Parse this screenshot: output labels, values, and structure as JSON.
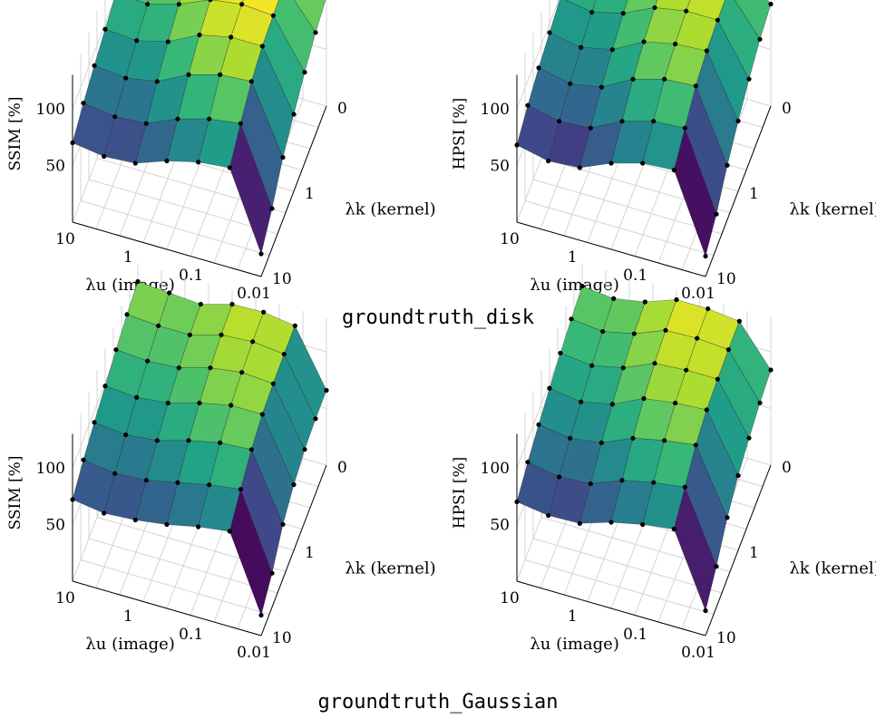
{
  "figure": {
    "captions": [
      "groundtruth_disk",
      "groundtruth_Gaussian"
    ]
  },
  "chart_data": [
    {
      "type": "surface",
      "group": "groundtruth_disk",
      "zlabel": "SSIM [%]",
      "xlabel": "λu (image)",
      "ylabel": "λk (kernel)",
      "x_ticks": [
        "10",
        "1",
        "0.1",
        "0.01"
      ],
      "y_ticks": [
        "0",
        "1",
        "10"
      ],
      "z_ticks": [
        "50",
        "100"
      ],
      "zlim": [
        0,
        130
      ],
      "colormap": "viridis",
      "grid": true,
      "z": [
        [
          70,
          80,
          88,
          95,
          102,
          108,
          112
        ],
        [
          66,
          76,
          85,
          93,
          100,
          106,
          111
        ],
        [
          68,
          78,
          90,
          100,
          108,
          112,
          114
        ],
        [
          78,
          90,
          104,
          114,
          120,
          124,
          126
        ],
        [
          85,
          98,
          112,
          120,
          124,
          126,
          127
        ],
        [
          88,
          102,
          114,
          120,
          122,
          124,
          124
        ],
        [
          20,
          35,
          55,
          68,
          80,
          90,
          96
        ]
      ]
    },
    {
      "type": "surface",
      "group": "groundtruth_disk",
      "zlabel": "HPSI [%]",
      "xlabel": "λu (image)",
      "ylabel": "λk (kernel)",
      "x_ticks": [
        "10",
        "1",
        "0.1",
        "0.01"
      ],
      "y_ticks": [
        "0",
        "1",
        "10"
      ],
      "z_ticks": [
        "50",
        "100"
      ],
      "zlim": [
        0,
        130
      ],
      "colormap": "viridis",
      "grid": true,
      "z": [
        [
          68,
          78,
          86,
          92,
          98,
          102,
          104
        ],
        [
          62,
          72,
          80,
          87,
          93,
          98,
          100
        ],
        [
          64,
          74,
          85,
          93,
          100,
          104,
          106
        ],
        [
          76,
          88,
          100,
          108,
          113,
          116,
          118
        ],
        [
          84,
          96,
          108,
          114,
          118,
          120,
          121
        ],
        [
          86,
          98,
          110,
          116,
          118,
          119,
          119
        ],
        [
          18,
          30,
          48,
          62,
          74,
          84,
          90
        ]
      ]
    },
    {
      "type": "surface",
      "group": "groundtruth_Gaussian",
      "zlabel": "SSIM [%]",
      "xlabel": "λu (image)",
      "ylabel": "λk (kernel)",
      "x_ticks": [
        "10",
        "1",
        "0.1",
        "0.01"
      ],
      "y_ticks": [
        "0",
        "1",
        "10"
      ],
      "z_ticks": [
        "50",
        "100"
      ],
      "zlim": [
        0,
        130
      ],
      "colormap": "viridis",
      "grid": true,
      "z": [
        [
          72,
          82,
          90,
          97,
          104,
          110,
          114
        ],
        [
          68,
          78,
          87,
          95,
          102,
          108,
          112
        ],
        [
          70,
          80,
          90,
          98,
          104,
          108,
          110
        ],
        [
          74,
          86,
          98,
          106,
          112,
          116,
          118
        ],
        [
          80,
          92,
          104,
          112,
          116,
          118,
          119
        ],
        [
          84,
          96,
          106,
          112,
          114,
          115,
          115
        ],
        [
          18,
          30,
          48,
          58,
          64,
          66,
          66
        ]
      ]
    },
    {
      "type": "surface",
      "group": "groundtruth_Gaussian",
      "zlabel": "HPSI [%]",
      "xlabel": "λu (image)",
      "ylabel": "λk (kernel)",
      "x_ticks": [
        "10",
        "1",
        "0.1",
        "0.01"
      ],
      "y_ticks": [
        "0",
        "1",
        "10"
      ],
      "z_ticks": [
        "50",
        "100"
      ],
      "zlim": [
        0,
        130
      ],
      "colormap": "viridis",
      "grid": true,
      "z": [
        [
          70,
          80,
          88,
          95,
          101,
          106,
          110
        ],
        [
          66,
          75,
          84,
          91,
          98,
          103,
          107
        ],
        [
          67,
          77,
          88,
          97,
          104,
          109,
          112
        ],
        [
          76,
          88,
          100,
          110,
          116,
          120,
          122
        ],
        [
          82,
          94,
          106,
          114,
          118,
          121,
          122
        ],
        [
          86,
          98,
          110,
          116,
          118,
          119,
          119
        ],
        [
          22,
          36,
          54,
          66,
          74,
          80,
          84
        ]
      ]
    }
  ]
}
